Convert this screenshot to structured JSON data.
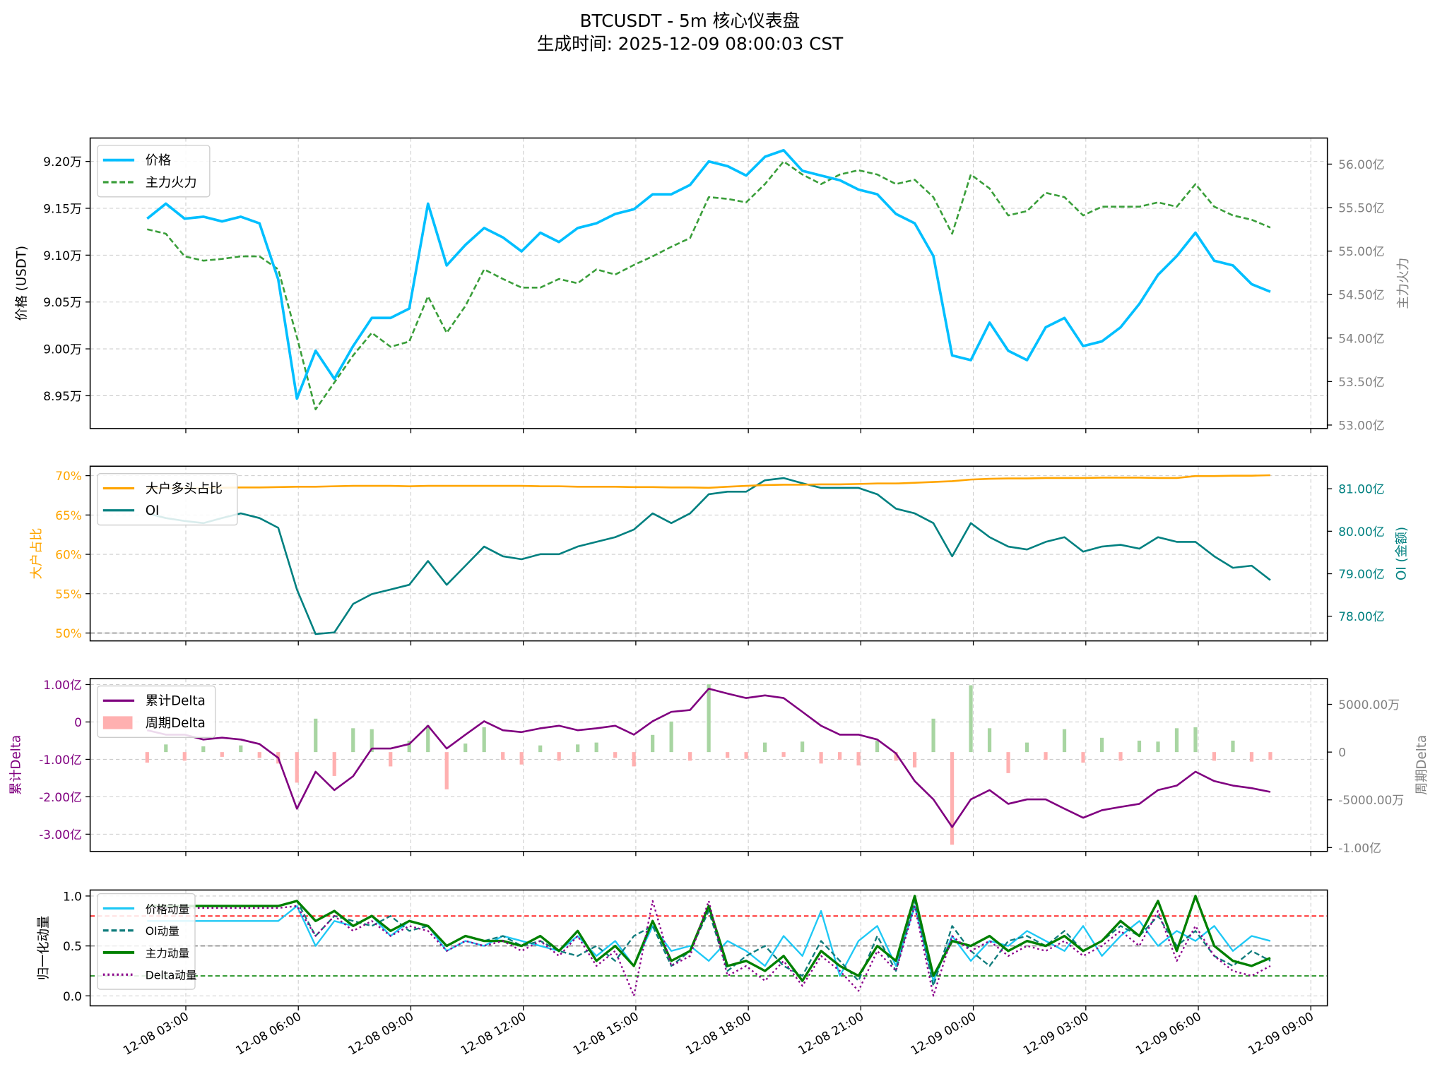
{
  "title": "BTCUSDT - 5m 核心仪表盘",
  "subtitle": "生成时间: 2025-12-09 08:00:03 CST",
  "chart_data": {
    "type": "line",
    "x_start": "12-08 02:00",
    "x_step_minutes": 30,
    "x_ticks": [
      "12-08 03:00",
      "12-08 06:00",
      "12-08 09:00",
      "12-08 12:00",
      "12-08 15:00",
      "12-08 18:00",
      "12-08 21:00",
      "12-09 00:00",
      "12-09 03:00",
      "12-09 06:00",
      "12-09 09:00"
    ],
    "panels": [
      {
        "name": "price",
        "ylabel": "价格 (USDT)",
        "ylabel_right": "主力火力",
        "yticks": [
          "9.20万",
          "9.15万",
          "9.10万",
          "9.05万",
          "9.00万",
          "8.95万"
        ],
        "yticks_right": [
          "56.00亿",
          "55.50亿",
          "55.00亿",
          "54.50亿",
          "54.00亿",
          "53.50亿",
          "53.00亿"
        ],
        "legend": [
          "价格",
          "主力火力"
        ],
        "colors": {
          "price": "#00bfff",
          "force": "#3a9e3a"
        },
        "price_wan": [
          9.139,
          9.155,
          9.139,
          9.141,
          9.136,
          9.141,
          9.134,
          9.074,
          8.947,
          8.998,
          8.968,
          9.003,
          9.033,
          9.033,
          9.043,
          9.155,
          9.089,
          9.111,
          9.129,
          9.119,
          9.104,
          9.124,
          9.114,
          9.129,
          9.134,
          9.144,
          9.149,
          9.165,
          9.165,
          9.175,
          9.2,
          9.195,
          9.185,
          9.205,
          9.212,
          9.19,
          9.185,
          9.18,
          9.17,
          9.165,
          9.144,
          9.134,
          9.099,
          8.993,
          8.988,
          9.028,
          8.998,
          8.988,
          9.023,
          9.033,
          9.003,
          9.008,
          9.023,
          9.048,
          9.079,
          9.099,
          9.124,
          9.094,
          9.089,
          9.069,
          9.061
        ],
        "force_yi": [
          55.25,
          55.2,
          54.94,
          54.89,
          54.91,
          54.94,
          54.94,
          54.79,
          54.01,
          53.18,
          53.49,
          53.8,
          54.06,
          53.9,
          53.96,
          54.48,
          54.06,
          54.37,
          54.79,
          54.68,
          54.58,
          54.58,
          54.68,
          54.63,
          54.79,
          54.73,
          54.84,
          54.94,
          55.05,
          55.15,
          55.62,
          55.6,
          55.56,
          55.77,
          56.03,
          55.88,
          55.77,
          55.88,
          55.93,
          55.88,
          55.77,
          55.82,
          55.62,
          55.2,
          55.88,
          55.72,
          55.41,
          55.46,
          55.67,
          55.62,
          55.41,
          55.51,
          55.51,
          55.51,
          55.56,
          55.51,
          55.77,
          55.51,
          55.41,
          55.36,
          55.27
        ],
        "ylim": [
          8.915,
          9.225
        ],
        "ylim_right": [
          52.96,
          56.3
        ]
      },
      {
        "name": "oi",
        "ylabel": "大户占比",
        "ylabel_right": "OI (金额)",
        "yticks": [
          "70%",
          "65%",
          "60%",
          "55%",
          "50%"
        ],
        "yticks_right": [
          "81.00亿",
          "80.00亿",
          "79.00亿",
          "78.00亿"
        ],
        "legend": [
          "大户多头占比",
          "OI"
        ],
        "colors": {
          "ratio": "#ffa500",
          "oi": "#008080",
          "ref": "#808080"
        },
        "ratio_pct": [
          68.4,
          68.4,
          68.4,
          68.4,
          68.45,
          68.5,
          68.5,
          68.55,
          68.6,
          68.6,
          68.65,
          68.7,
          68.7,
          68.7,
          68.65,
          68.7,
          68.7,
          68.7,
          68.7,
          68.7,
          68.7,
          68.65,
          68.65,
          68.6,
          68.6,
          68.6,
          68.55,
          68.55,
          68.5,
          68.5,
          68.45,
          68.6,
          68.7,
          68.8,
          68.85,
          68.85,
          68.9,
          68.9,
          68.95,
          69.0,
          69.0,
          69.1,
          69.2,
          69.3,
          69.5,
          69.6,
          69.65,
          69.65,
          69.7,
          69.7,
          69.7,
          69.75,
          69.75,
          69.75,
          69.7,
          69.7,
          69.95,
          69.95,
          70.0,
          70.0,
          70.05
        ],
        "oi_yi": [
          80.42,
          80.31,
          80.24,
          80.19,
          80.31,
          80.42,
          80.31,
          80.08,
          78.63,
          77.58,
          77.62,
          78.29,
          78.52,
          78.63,
          78.74,
          79.3,
          78.74,
          79.19,
          79.64,
          79.41,
          79.34,
          79.46,
          79.46,
          79.64,
          79.75,
          79.86,
          80.04,
          80.42,
          80.19,
          80.42,
          80.87,
          80.93,
          80.93,
          81.2,
          81.25,
          81.13,
          81.02,
          81.02,
          81.02,
          80.87,
          80.53,
          80.42,
          80.19,
          79.41,
          80.19,
          79.86,
          79.64,
          79.57,
          79.75,
          79.86,
          79.52,
          79.64,
          79.68,
          79.59,
          79.86,
          79.75,
          79.75,
          79.41,
          79.14,
          79.19,
          78.85
        ],
        "ref_line_pct": 50,
        "ylim": [
          49.0,
          71.2
        ],
        "ylim_right": [
          77.42,
          81.53
        ]
      },
      {
        "name": "delta",
        "ylabel": "累计Delta",
        "ylabel_right": "周期Delta",
        "yticks": [
          "1.00亿",
          "0",
          "-1.00亿",
          "-2.00亿",
          "-3.00亿"
        ],
        "yticks_right": [
          "5000.00万",
          "0",
          "-5000.00万",
          "-1.00亿"
        ],
        "legend": [
          "累计Delta",
          "周期Delta"
        ],
        "colors": {
          "cum": "#800080",
          "pos": "#a8d5a2",
          "neg": "#ffb0b0"
        },
        "cum_delta_yi": [
          -0.22,
          -0.34,
          -0.34,
          -0.47,
          -0.42,
          -0.47,
          -0.59,
          -0.96,
          -2.32,
          -1.33,
          -1.82,
          -1.45,
          -0.71,
          -0.71,
          -0.59,
          -0.1,
          -0.71,
          -0.34,
          0.02,
          -0.22,
          -0.27,
          -0.17,
          -0.1,
          -0.22,
          -0.17,
          -0.1,
          -0.34,
          0.02,
          0.27,
          0.32,
          0.89,
          0.76,
          0.64,
          0.71,
          0.64,
          0.27,
          -0.1,
          -0.34,
          -0.34,
          -0.47,
          -0.84,
          -1.58,
          -2.07,
          -2.81,
          -2.07,
          -1.82,
          -2.19,
          -2.07,
          -2.07,
          -2.32,
          -2.56,
          -2.36,
          -2.27,
          -2.19,
          -1.82,
          -1.7,
          -1.33,
          -1.58,
          -1.7,
          -1.77,
          -1.87
        ],
        "period_delta_wan": [
          -1100,
          800,
          -900,
          600,
          -500,
          700,
          -600,
          -1200,
          -3200,
          3500,
          -2500,
          2500,
          2400,
          -1500,
          1200,
          2800,
          -3900,
          900,
          2600,
          -800,
          -1300,
          700,
          -900,
          800,
          1000,
          -600,
          -1500,
          1800,
          3200,
          -900,
          7100,
          -600,
          -700,
          1000,
          -500,
          1100,
          -1200,
          -800,
          -1400,
          1200,
          -900,
          -1600,
          3500,
          -9700,
          7000,
          2500,
          -2200,
          1000,
          -800,
          2400,
          -1100,
          1500,
          -900,
          1200,
          1100,
          2500,
          2600,
          -900,
          1200,
          -1000,
          -800
        ],
        "ylim": [
          -3.46,
          1.16
        ],
        "ylim_right": [
          -10400,
          7700
        ]
      },
      {
        "name": "momentum",
        "ylabel": "归一化动量",
        "yticks": [
          "1.0",
          "0.5",
          "0.0"
        ],
        "legend": [
          "价格动量",
          "OI动量",
          "主力动量",
          "Delta动量"
        ],
        "colors": {
          "price": "#1ec8f5",
          "oi": "#107c7c",
          "force": "#008000",
          "delta": "#8b008b",
          "high": "#ff0000",
          "mid": "#808080",
          "low": "#008000"
        },
        "thresholds": [
          0.8,
          0.5,
          0.2
        ],
        "price_mom": [
          0.75,
          0.75,
          0.75,
          0.75,
          0.75,
          0.75,
          0.75,
          0.75,
          0.9,
          0.5,
          0.75,
          0.7,
          0.8,
          0.6,
          0.75,
          0.7,
          0.45,
          0.55,
          0.5,
          0.6,
          0.55,
          0.5,
          0.45,
          0.6,
          0.4,
          0.55,
          0.3,
          0.7,
          0.45,
          0.5,
          0.35,
          0.55,
          0.45,
          0.3,
          0.6,
          0.4,
          0.85,
          0.2,
          0.55,
          0.7,
          0.3,
          0.9,
          0.15,
          0.6,
          0.35,
          0.55,
          0.5,
          0.65,
          0.55,
          0.45,
          0.7,
          0.4,
          0.6,
          0.75,
          0.5,
          0.65,
          0.55,
          0.7,
          0.45,
          0.6,
          0.55
        ],
        "oi_mom": [
          0.9,
          0.9,
          0.9,
          0.9,
          0.9,
          0.9,
          0.9,
          0.9,
          0.95,
          0.6,
          0.8,
          0.75,
          0.7,
          0.8,
          0.65,
          0.7,
          0.5,
          0.6,
          0.55,
          0.6,
          0.5,
          0.55,
          0.45,
          0.4,
          0.5,
          0.35,
          0.6,
          0.7,
          0.3,
          0.45,
          0.85,
          0.25,
          0.4,
          0.5,
          0.3,
          0.2,
          0.55,
          0.35,
          0.15,
          0.6,
          0.25,
          0.95,
          0.1,
          0.7,
          0.45,
          0.3,
          0.55,
          0.6,
          0.5,
          0.65,
          0.45,
          0.55,
          0.7,
          0.6,
          0.8,
          0.5,
          0.65,
          0.4,
          0.3,
          0.45,
          0.35
        ],
        "force_mom": [
          0.9,
          0.9,
          0.9,
          0.9,
          0.9,
          0.9,
          0.9,
          0.9,
          0.95,
          0.75,
          0.85,
          0.7,
          0.8,
          0.65,
          0.75,
          0.7,
          0.5,
          0.6,
          0.55,
          0.55,
          0.5,
          0.6,
          0.45,
          0.65,
          0.35,
          0.5,
          0.3,
          0.75,
          0.35,
          0.45,
          0.9,
          0.3,
          0.35,
          0.25,
          0.4,
          0.15,
          0.45,
          0.3,
          0.2,
          0.5,
          0.35,
          1.0,
          0.2,
          0.55,
          0.5,
          0.6,
          0.45,
          0.55,
          0.5,
          0.6,
          0.45,
          0.55,
          0.75,
          0.6,
          0.95,
          0.45,
          1.0,
          0.5,
          0.35,
          0.3,
          0.38
        ],
        "delta_mom": [
          0.88,
          0.88,
          0.88,
          0.88,
          0.88,
          0.88,
          0.88,
          0.88,
          0.9,
          0.6,
          0.8,
          0.65,
          0.75,
          0.6,
          0.7,
          0.65,
          0.45,
          0.55,
          0.5,
          0.55,
          0.45,
          0.55,
          0.4,
          0.6,
          0.3,
          0.45,
          0.0,
          0.95,
          0.3,
          0.4,
          0.95,
          0.2,
          0.3,
          0.15,
          0.35,
          0.1,
          0.4,
          0.25,
          0.05,
          0.45,
          0.25,
          0.9,
          0.0,
          0.6,
          0.45,
          0.55,
          0.4,
          0.5,
          0.45,
          0.55,
          0.4,
          0.5,
          0.65,
          0.5,
          0.85,
          0.35,
          0.7,
          0.4,
          0.25,
          0.2,
          0.3
        ],
        "ylim": [
          -0.1,
          1.06
        ]
      }
    ]
  }
}
